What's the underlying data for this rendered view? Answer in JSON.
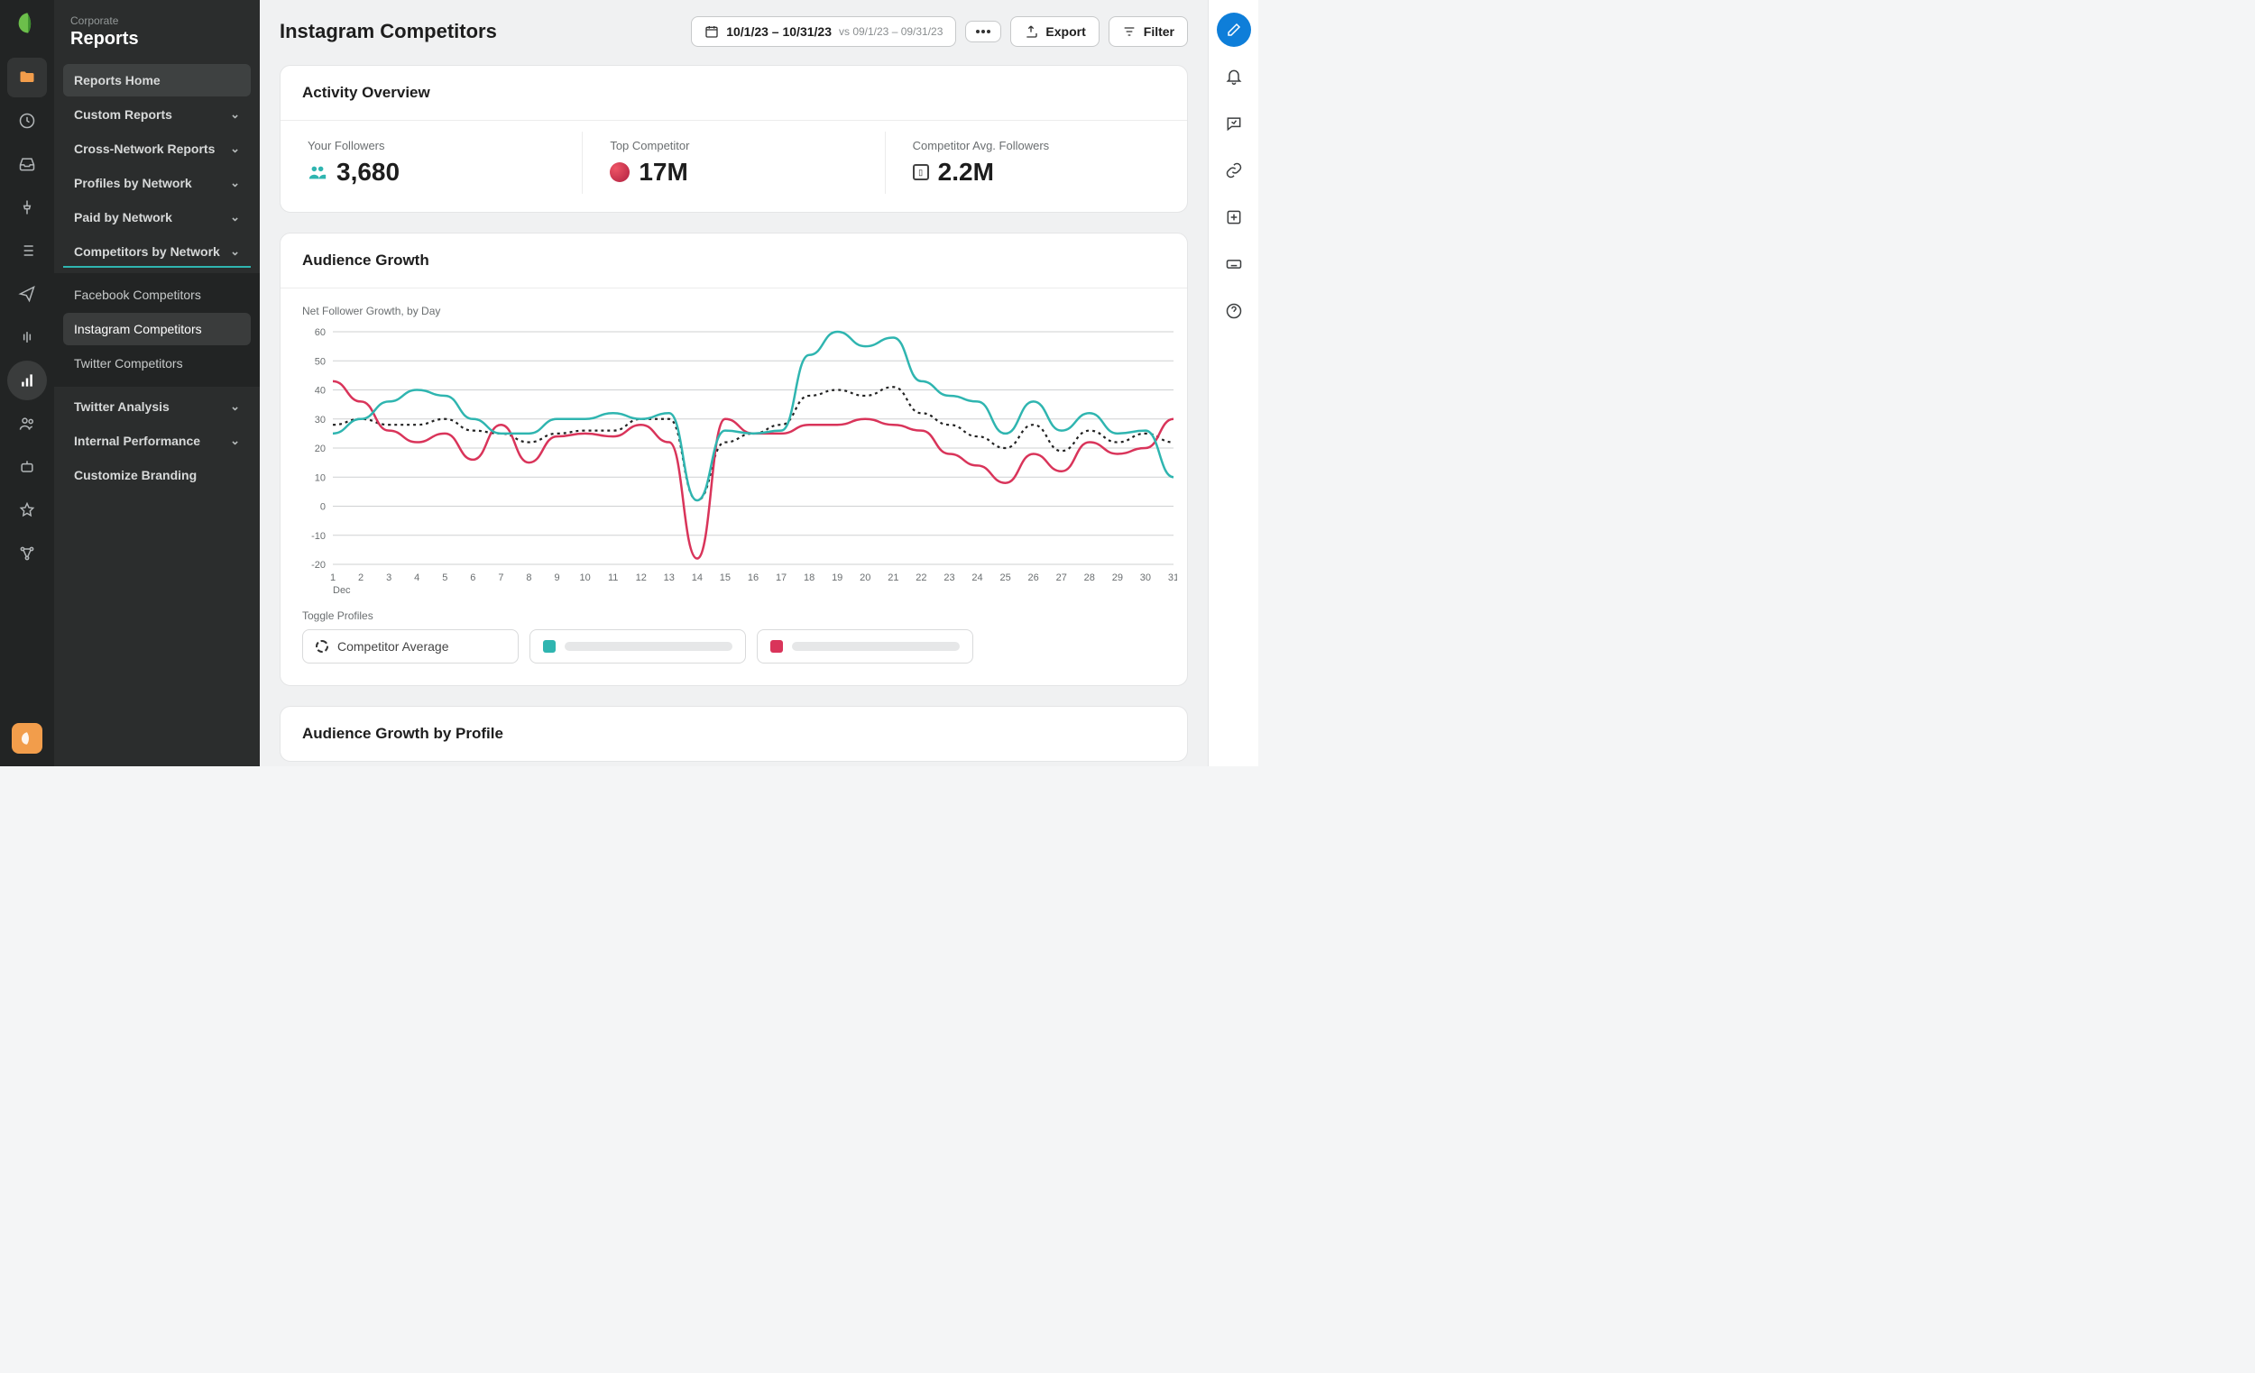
{
  "sidebar": {
    "label": "Corporate",
    "title": "Reports",
    "items": [
      {
        "label": "Reports Home",
        "highlight": true,
        "expandable": false
      },
      {
        "label": "Custom Reports",
        "expandable": true
      },
      {
        "label": "Cross-Network Reports",
        "expandable": true
      },
      {
        "label": "Profiles by Network",
        "expandable": true
      },
      {
        "label": "Paid by Network",
        "expandable": true
      },
      {
        "label": "Competitors by Network",
        "expandable": true,
        "active_underline": true,
        "children": [
          {
            "label": "Facebook Competitors"
          },
          {
            "label": "Instagram Competitors",
            "selected": true
          },
          {
            "label": "Twitter Competitors"
          }
        ]
      },
      {
        "label": "Twitter Analysis",
        "expandable": true
      },
      {
        "label": "Internal Performance",
        "expandable": true
      },
      {
        "label": "Customize Branding",
        "expandable": false
      }
    ]
  },
  "header": {
    "page_title": "Instagram Competitors",
    "date_main": "10/1/23 – 10/31/23",
    "date_compare": "vs 09/1/23 – 09/31/23",
    "export_label": "Export",
    "filter_label": "Filter"
  },
  "activity": {
    "title": "Activity Overview",
    "stats": [
      {
        "label": "Your Followers",
        "value": "3,680",
        "icon": "people"
      },
      {
        "label": "Top Competitor",
        "value": "17M",
        "icon": "red-dot"
      },
      {
        "label": "Competitor Avg. Followers",
        "value": "2.2M",
        "icon": "square"
      }
    ]
  },
  "growth": {
    "title": "Audience Growth",
    "caption": "Net Follower Growth, by Day",
    "month_label": "Dec",
    "toggle_label": "Toggle Profiles",
    "legend_avg": "Competitor Average",
    "colors": {
      "series_a": "#2fb5b0",
      "series_b": "#d9345a",
      "series_avg": "#222222",
      "grid": "#cfd1d2",
      "axis_text": "#6a6e70",
      "background": "#ffffff"
    },
    "y_ticks": [
      -20,
      -10,
      0,
      10,
      20,
      30,
      40,
      50,
      60
    ],
    "x_ticks": [
      1,
      2,
      3,
      4,
      5,
      6,
      7,
      8,
      9,
      10,
      11,
      12,
      13,
      14,
      15,
      16,
      17,
      18,
      19,
      20,
      21,
      22,
      23,
      24,
      25,
      26,
      27,
      28,
      29,
      30,
      31
    ],
    "series_a": [
      25,
      30,
      36,
      40,
      38,
      30,
      25,
      25,
      30,
      30,
      32,
      30,
      32,
      2,
      26,
      25,
      26,
      52,
      60,
      55,
      58,
      43,
      38,
      36,
      25,
      36,
      26,
      32,
      25,
      26,
      10
    ],
    "series_b": [
      43,
      36,
      26,
      22,
      25,
      16,
      28,
      15,
      24,
      25,
      24,
      28,
      22,
      -18,
      30,
      25,
      25,
      28,
      28,
      30,
      28,
      26,
      18,
      14,
      8,
      18,
      12,
      22,
      18,
      20,
      30
    ],
    "series_avg": [
      28,
      30,
      28,
      28,
      30,
      26,
      25,
      22,
      25,
      26,
      26,
      30,
      30,
      2,
      22,
      25,
      28,
      38,
      40,
      38,
      41,
      32,
      28,
      24,
      20,
      28,
      19,
      26,
      22,
      25,
      22
    ],
    "line_width": 2.5,
    "dash_pattern": "3 4",
    "ylim": [
      -20,
      60
    ]
  },
  "growth_profile": {
    "title": "Audience Growth by Profile"
  }
}
